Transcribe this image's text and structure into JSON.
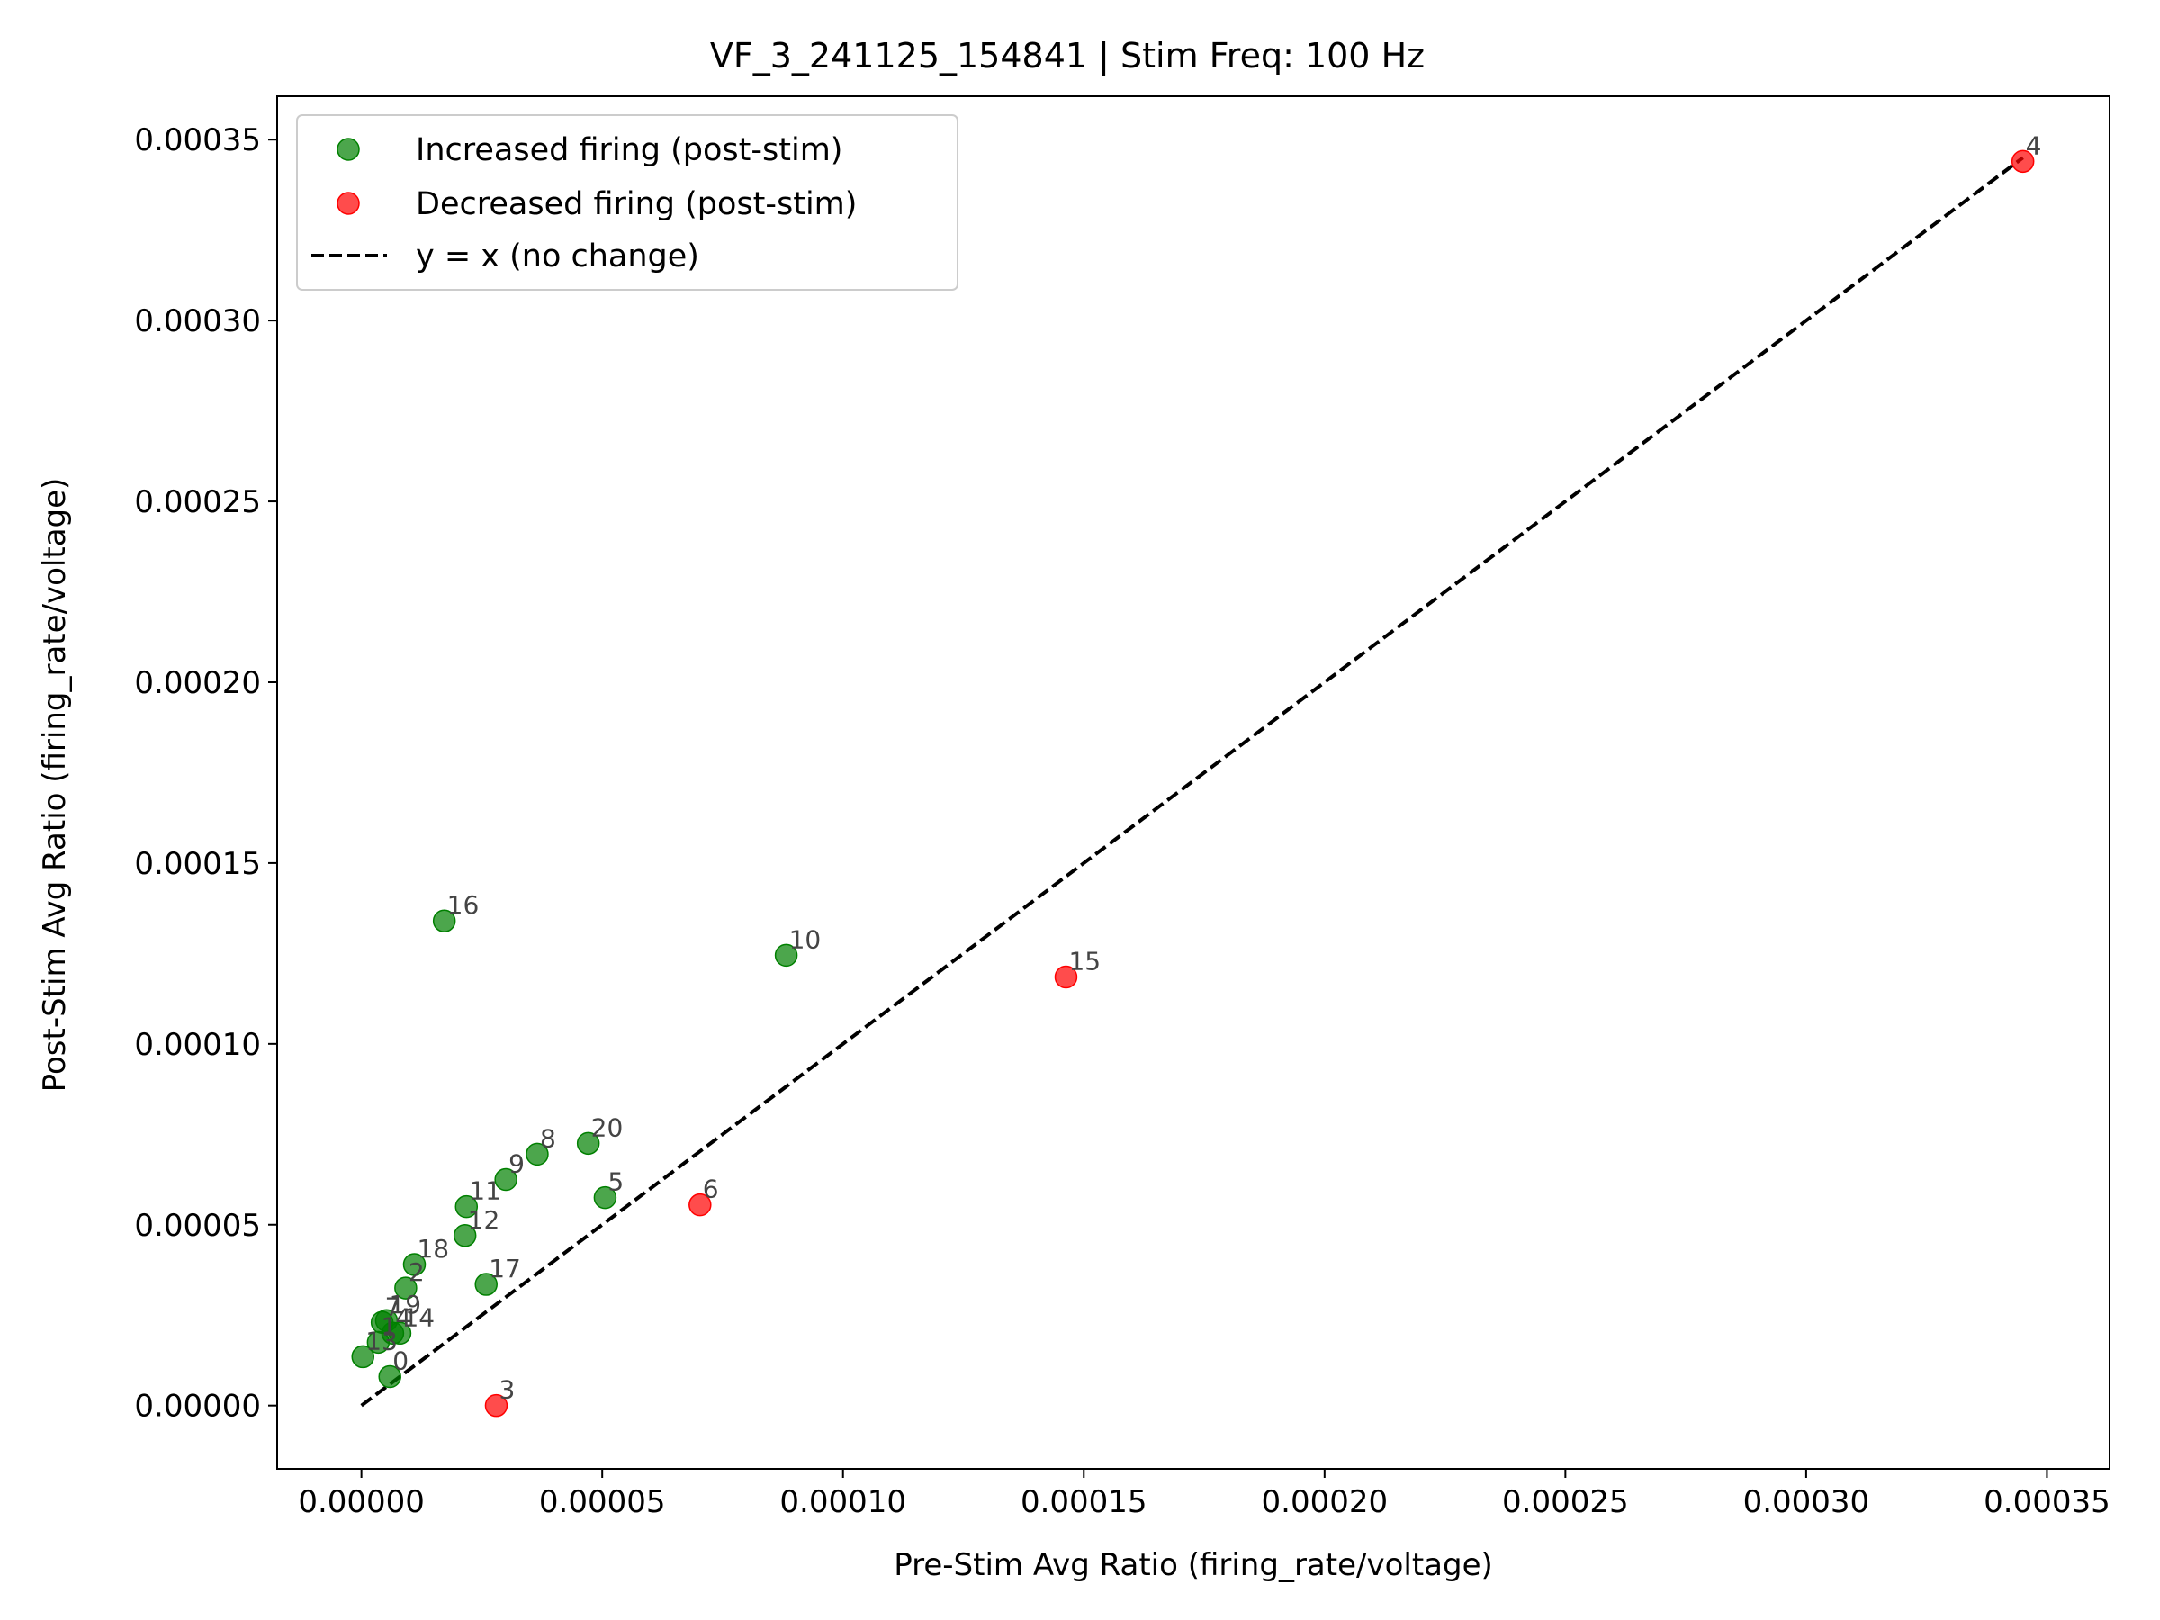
{
  "chart_data": {
    "type": "scatter",
    "title": "VF_3_241125_154841 | Stim Freq: 100 Hz",
    "xlabel": "Pre-Stim Avg Ratio (firing_rate/voltage)",
    "ylabel": "Post-Stim Avg Ratio (firing_rate/voltage)",
    "xlim": [
      -1.75e-05,
      0.000363
    ],
    "ylim": [
      -1.75e-05,
      0.000362
    ],
    "xticks": [
      "0.00000",
      "0.00005",
      "0.00010",
      "0.00015",
      "0.00020",
      "0.00025",
      "0.00030",
      "0.00035"
    ],
    "yticks": [
      "0.00000",
      "0.00005",
      "0.00010",
      "0.00015",
      "0.00020",
      "0.00025",
      "0.00030",
      "0.00035"
    ],
    "legend_position": "top-left",
    "legend": {
      "increased": "Increased firing (post-stim)",
      "decreased": "Decreased firing (post-stim)",
      "identity": "y = x (no change)"
    },
    "colors": {
      "increased": "#008000",
      "decreased": "#ff0000",
      "identity": "#000000"
    },
    "series": [
      {
        "name": "Increased firing (post-stim)",
        "points": [
          {
            "label": "0",
            "x": 5.9e-06,
            "y": 8e-06
          },
          {
            "label": "1",
            "x": 3.5e-06,
            "y": 1.75e-05
          },
          {
            "label": "2",
            "x": 9.2e-06,
            "y": 3.25e-05
          },
          {
            "label": "4",
            "x": 6.5e-06,
            "y": 2e-05
          },
          {
            "label": "5",
            "x": 5.06e-05,
            "y": 5.75e-05
          },
          {
            "label": "7",
            "x": 4.3e-06,
            "y": 2.3e-05
          },
          {
            "label": "8",
            "x": 3.65e-05,
            "y": 6.95e-05
          },
          {
            "label": "9",
            "x": 3e-05,
            "y": 6.25e-05
          },
          {
            "label": "10",
            "x": 8.82e-05,
            "y": 0.0001245
          },
          {
            "label": "11",
            "x": 2.18e-05,
            "y": 5.5e-05
          },
          {
            "label": "12",
            "x": 2.15e-05,
            "y": 4.7e-05
          },
          {
            "label": "13",
            "x": 3e-07,
            "y": 1.35e-05
          },
          {
            "label": "14",
            "x": 8e-06,
            "y": 2e-05
          },
          {
            "label": "16",
            "x": 1.72e-05,
            "y": 0.000134
          },
          {
            "label": "17",
            "x": 2.59e-05,
            "y": 3.35e-05
          },
          {
            "label": "18",
            "x": 1.1e-05,
            "y": 3.9e-05
          },
          {
            "label": "19",
            "x": 5.2e-06,
            "y": 2.35e-05
          },
          {
            "label": "20",
            "x": 4.71e-05,
            "y": 7.25e-05
          }
        ]
      },
      {
        "name": "Decreased firing (post-stim)",
        "points": [
          {
            "label": "3",
            "x": 2.8e-05,
            "y": 0.0
          },
          {
            "label": "4",
            "x": 0.000345,
            "y": 0.000344
          },
          {
            "label": "6",
            "x": 7.03e-05,
            "y": 5.55e-05
          },
          {
            "label": "15",
            "x": 0.0001463,
            "y": 0.0001185
          }
        ]
      }
    ],
    "identity_line": {
      "from": 0.0,
      "to": 0.000345
    }
  }
}
